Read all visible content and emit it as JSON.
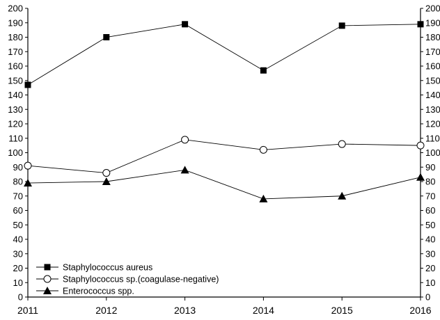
{
  "chart_data": {
    "type": "line",
    "x": [
      2011,
      2012,
      2013,
      2014,
      2015,
      2016
    ],
    "x_tick_labels": [
      "2011",
      "2012",
      "2013",
      "2014",
      "2015",
      "2016"
    ],
    "y_tick_labels": [
      "0",
      "10",
      "20",
      "30",
      "40",
      "50",
      "60",
      "70",
      "80",
      "90",
      "100",
      "110",
      "120",
      "130",
      "140",
      "150",
      "160",
      "170",
      "180",
      "190",
      "200"
    ],
    "ylim": [
      0,
      200
    ],
    "y_axes": "left-and-right",
    "grid": false,
    "legend_position": "bottom-left",
    "title": "",
    "xlabel": "",
    "ylabel": "",
    "series": [
      {
        "name": "Staphylococcus aureus",
        "marker": "filled-square",
        "values": [
          147,
          180,
          189,
          157,
          188,
          189
        ]
      },
      {
        "name": "Staphylococcus sp.(coagulase-negative)",
        "marker": "open-circle",
        "values": [
          91,
          86,
          109,
          102,
          106,
          105
        ]
      },
      {
        "name": "Enterococcus spp.",
        "marker": "filled-triangle",
        "values": [
          79,
          80,
          88,
          68,
          70,
          83
        ]
      }
    ]
  }
}
